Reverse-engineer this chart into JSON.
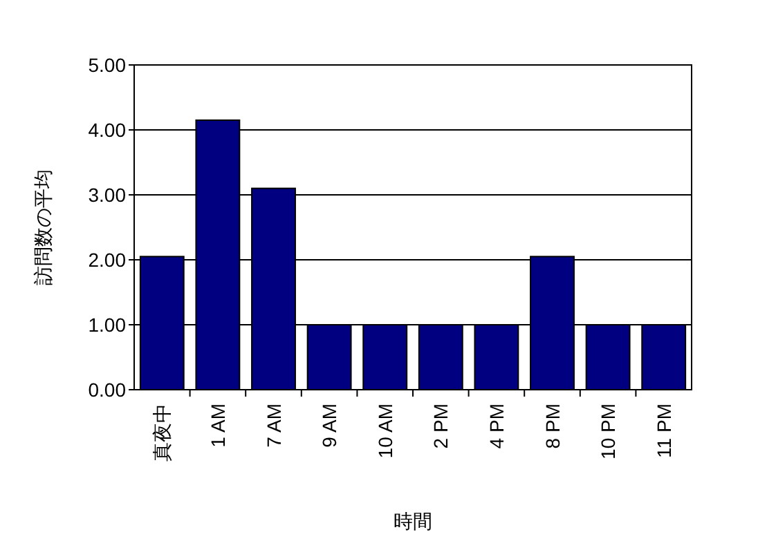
{
  "chart_data": {
    "type": "bar",
    "categories": [
      "真夜中",
      "1 AM",
      "7 AM",
      "9 AM",
      "10 AM",
      "2 PM",
      "4 PM",
      "8 PM",
      "10 PM",
      "11 PM"
    ],
    "values": [
      2.05,
      4.15,
      3.1,
      1,
      1,
      1,
      1,
      2.05,
      1,
      1
    ],
    "color": "#000080",
    "ylim": [
      0,
      5
    ],
    "yticks": [
      {
        "value": 0,
        "label": "0.00"
      },
      {
        "value": 1,
        "label": "1.00"
      },
      {
        "value": 2,
        "label": "2.00"
      },
      {
        "value": 3,
        "label": "3.00"
      },
      {
        "value": 4,
        "label": "4.00"
      },
      {
        "value": 5,
        "label": "5.00"
      }
    ],
    "xlabel": "時間",
    "ylabel": "訪問数の平均",
    "grid": "y"
  }
}
